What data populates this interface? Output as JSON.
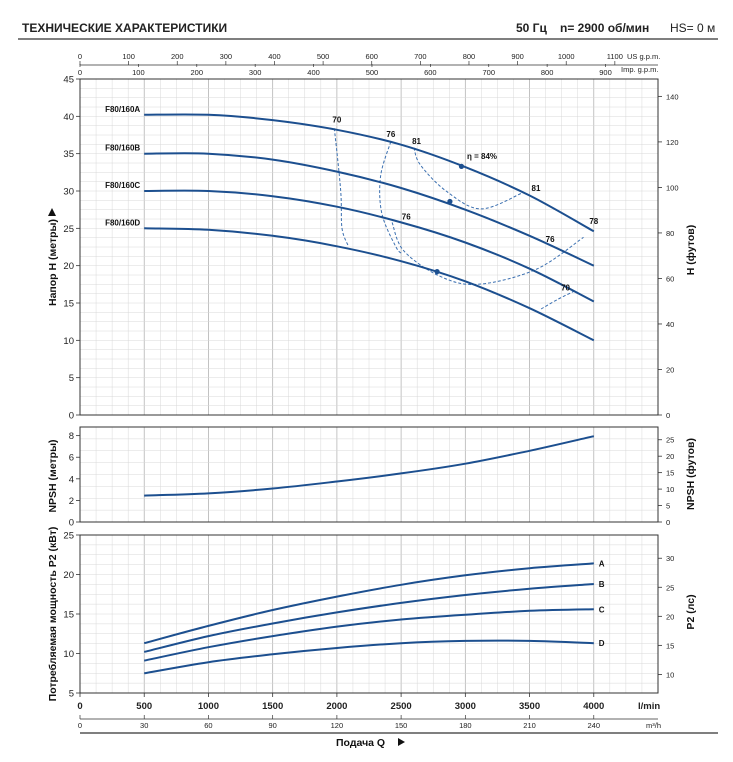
{
  "header": {
    "title": "ТЕХНИЧЕСКИЕ ХАРАКТЕРИСТИКИ",
    "freq": "50 Гц",
    "speed": "n= 2900 об/мин",
    "hs": "HS= 0 м"
  },
  "colors": {
    "curve": "#1c4f8f",
    "grid": "#c8c8c8",
    "eff": "#3a6fb0"
  },
  "chart_data": [
    {
      "type": "line",
      "panel": "head",
      "ylabel": "Напор Н (метры)",
      "ylabel2": "H (футов)",
      "xlim": [
        0,
        4500
      ],
      "ylim": [
        0,
        45
      ],
      "yticks": [
        "0",
        "5",
        "10",
        "15",
        "20",
        "25",
        "30",
        "35",
        "40",
        "45"
      ],
      "yticks2": [
        "0",
        "20",
        "40",
        "60",
        "80",
        "100",
        "120",
        "140"
      ],
      "top_axis_us": {
        "unit": "US g.p.m.",
        "ticks": [
          "0",
          "100",
          "200",
          "300",
          "400",
          "500",
          "600",
          "700",
          "800",
          "900",
          "1000",
          "1100"
        ]
      },
      "top_axis_imp": {
        "unit": "Imp. g.p.m.",
        "ticks": [
          "0",
          "100",
          "200",
          "300",
          "400",
          "500",
          "600",
          "700",
          "800",
          "900"
        ]
      },
      "series": [
        {
          "name": "F80/160A",
          "x": [
            500,
            1000,
            1500,
            2000,
            2500,
            3000,
            3500,
            4000
          ],
          "y": [
            40.2,
            40.2,
            39.5,
            38.2,
            36.2,
            33.2,
            29.4,
            24.6
          ]
        },
        {
          "name": "F80/160B",
          "x": [
            500,
            1000,
            1500,
            2000,
            2500,
            3000,
            3500,
            4000
          ],
          "y": [
            35.0,
            35.0,
            34.2,
            32.6,
            30.4,
            27.5,
            24.0,
            20.0
          ]
        },
        {
          "name": "F80/160C",
          "x": [
            500,
            1000,
            1500,
            2000,
            2500,
            3000,
            3500,
            4000
          ],
          "y": [
            30.0,
            30.0,
            29.3,
            27.9,
            25.8,
            23.1,
            19.6,
            15.2
          ]
        },
        {
          "name": "F80/160D",
          "x": [
            500,
            1000,
            1500,
            2000,
            2500,
            3000,
            3500,
            4000
          ],
          "y": [
            25.0,
            24.8,
            24.0,
            22.6,
            20.6,
            17.9,
            14.3,
            10.0
          ]
        }
      ],
      "efficiency": [
        {
          "label": "70",
          "x": [
            1980,
            2030,
            2040,
            2090
          ],
          "y": [
            38.4,
            30.0,
            25.0,
            22.6
          ]
        },
        {
          "label": "76",
          "x": [
            2420,
            2340,
            2350,
            2460,
            2510
          ],
          "y": [
            36.6,
            32.0,
            27.0,
            22.5,
            21.6
          ]
        },
        {
          "label": "81",
          "x": [
            2600,
            2650,
            2850,
            3120,
            3450
          ],
          "y": [
            35.8,
            33.5,
            30.0,
            27.6,
            29.8
          ]
        },
        {
          "label": "76",
          "x": [
            2430,
            2520,
            2800,
            3100,
            3550,
            3920
          ],
          "y": [
            25.8,
            22.0,
            18.6,
            17.5,
            19.5,
            23.8
          ]
        },
        {
          "label": "70",
          "x": [
            3590,
            3720,
            3850
          ],
          "y": [
            14.2,
            15.5,
            16.6
          ]
        },
        {
          "label": "81",
          "x": [
            3450
          ],
          "y": [
            30.2
          ]
        },
        {
          "label": "78",
          "x": [
            3920
          ],
          "y": [
            25.2
          ]
        }
      ],
      "eff_labels": [
        "70",
        "76",
        "81",
        "η = 84%",
        "81",
        "78",
        "76",
        "76",
        "70"
      ],
      "bep_points": [
        {
          "x": 2970,
          "y": 33.3
        },
        {
          "x": 2880,
          "y": 28.6
        },
        {
          "x": 2780,
          "y": 19.2
        }
      ]
    },
    {
      "type": "line",
      "panel": "npsh",
      "ylabel": "NPSH (метры)",
      "ylabel2": "NPSH (футов)",
      "xlim": [
        0,
        4500
      ],
      "ylim": [
        0,
        8.8
      ],
      "yticks": [
        "0",
        "2",
        "4",
        "6",
        "8"
      ],
      "yticks2": [
        "0",
        "5",
        "10",
        "15",
        "20",
        "25"
      ],
      "series": [
        {
          "name": "",
          "x": [
            500,
            1000,
            1500,
            2000,
            2500,
            3000,
            3500,
            4000
          ],
          "y": [
            2.45,
            2.65,
            3.1,
            3.75,
            4.5,
            5.4,
            6.6,
            7.95
          ]
        }
      ]
    },
    {
      "type": "line",
      "panel": "power",
      "ylabel": "Потребляемая мощность P2 (кВт)",
      "ylabel2": "P2 (лс)",
      "xlabel": "Подача Q",
      "xunit": "l/min",
      "xunit2": "m³/h",
      "xlim": [
        0,
        4500
      ],
      "ylim": [
        5,
        25
      ],
      "xticks": [
        "0",
        "500",
        "1000",
        "1500",
        "2000",
        "2500",
        "3000",
        "3500",
        "4000"
      ],
      "xticks2": [
        "0",
        "30",
        "60",
        "90",
        "120",
        "150",
        "180",
        "210",
        "240"
      ],
      "yticks": [
        "5",
        "10",
        "15",
        "20",
        "25"
      ],
      "yticks2": [
        "10",
        "15",
        "20",
        "25",
        "30"
      ],
      "series": [
        {
          "name": "A",
          "x": [
            500,
            1000,
            1500,
            2000,
            2500,
            3000,
            3500,
            4000
          ],
          "y": [
            11.3,
            13.5,
            15.5,
            17.2,
            18.7,
            19.9,
            20.8,
            21.4
          ]
        },
        {
          "name": "B",
          "x": [
            500,
            1000,
            1500,
            2000,
            2500,
            3000,
            3500,
            4000
          ],
          "y": [
            10.2,
            12.2,
            13.8,
            15.2,
            16.4,
            17.4,
            18.2,
            18.8
          ]
        },
        {
          "name": "C",
          "x": [
            500,
            1000,
            1500,
            2000,
            2500,
            3000,
            3500,
            4000
          ],
          "y": [
            9.1,
            10.8,
            12.2,
            13.4,
            14.3,
            14.9,
            15.4,
            15.6
          ]
        },
        {
          "name": "D",
          "x": [
            500,
            1000,
            1500,
            2000,
            2500,
            3000,
            3500,
            4000
          ],
          "y": [
            7.5,
            8.9,
            9.9,
            10.7,
            11.3,
            11.6,
            11.6,
            11.3
          ]
        }
      ]
    }
  ]
}
